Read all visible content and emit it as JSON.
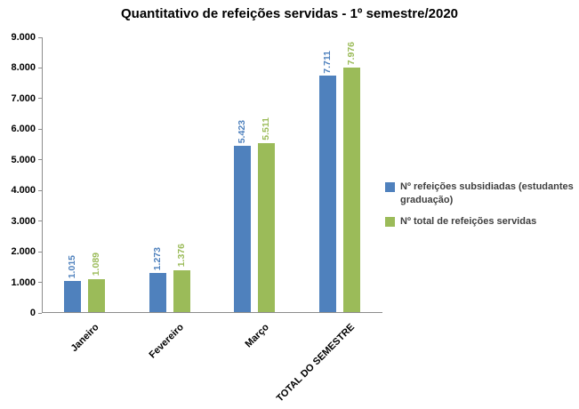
{
  "title": "Quantitativo de refeições servidas - 1º semestre/2020",
  "chart_data": {
    "type": "bar",
    "title": "Quantitativo de refeições servidas - 1º semestre/2020",
    "categories": [
      "Janeiro",
      "Fevereiro",
      "Março",
      "TOTAL DO SEMESTRE"
    ],
    "series": [
      {
        "name": "Nº refeições subsidiadas (estudantes graduação)",
        "color": "#4F81BD",
        "values": [
          1015,
          1273,
          5423,
          7711
        ],
        "labels": [
          "1.015",
          "1.273",
          "5.423",
          "7.711"
        ]
      },
      {
        "name": "Nº total de refeições servidas",
        "color": "#9BBB59",
        "values": [
          1089,
          1376,
          5511,
          7976
        ],
        "labels": [
          "1.089",
          "1.376",
          "5.511",
          "7.976"
        ]
      }
    ],
    "y_axis": {
      "min": 0,
      "max": 9000,
      "step": 1000,
      "tick_labels": [
        "0",
        "1.000",
        "2.000",
        "3.000",
        "4.000",
        "5.000",
        "6.000",
        "7.000",
        "8.000",
        "9.000"
      ]
    },
    "x_label_rotation": -45,
    "legend_position": "right",
    "grid": false
  }
}
